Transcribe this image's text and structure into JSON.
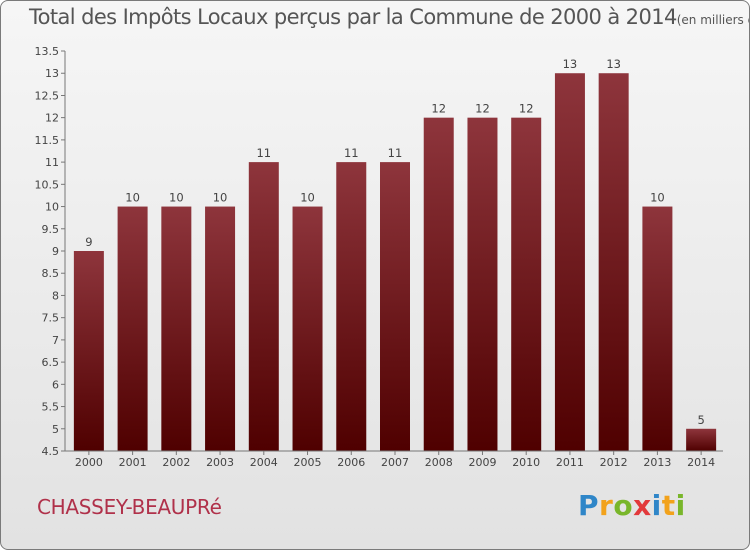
{
  "header": {
    "title": "Total des Impôts Locaux perçus par la Commune de 2000 à 2014",
    "unit": "(en milliers d'€)"
  },
  "commune": "CHASSEY-BEAUPRé",
  "brand": {
    "letters": [
      "P",
      "r",
      "o",
      "x",
      "i",
      "t",
      "i"
    ]
  },
  "colors": {
    "bar_top": "#8e353c",
    "bar_bottom": "#4f0000",
    "axis": "#777777"
  },
  "chart_data": {
    "type": "bar",
    "title": "Total des Impôts Locaux perçus par la Commune de 2000 à 2014",
    "xlabel": "",
    "ylabel": "",
    "categories": [
      "2000",
      "2001",
      "2002",
      "2003",
      "2004",
      "2005",
      "2006",
      "2007",
      "2008",
      "2009",
      "2010",
      "2011",
      "2012",
      "2013",
      "2014"
    ],
    "values": [
      9,
      10,
      10,
      10,
      11,
      10,
      11,
      11,
      12,
      12,
      12,
      13,
      13,
      10,
      5
    ],
    "ylim": [
      4.5,
      13.5
    ],
    "yticks": [
      "4.5",
      "5",
      "5.5",
      "6",
      "6.5",
      "7",
      "7.5",
      "8",
      "8.5",
      "9",
      "9.5",
      "10",
      "10.5",
      "11",
      "11.5",
      "12",
      "12.5",
      "13",
      "13.5"
    ],
    "grid": false,
    "legend": "none"
  }
}
